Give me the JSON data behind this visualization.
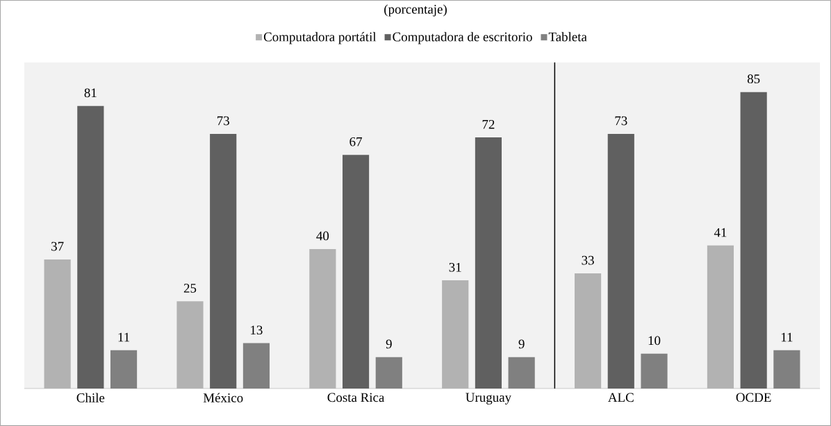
{
  "chart_data": {
    "type": "bar",
    "subtitle": "(porcentaje)",
    "categories": [
      "Chile",
      "México",
      "Costa Rica",
      "Uruguay",
      "ALC",
      "OCDE"
    ],
    "series": [
      {
        "name": "Computadora portátil",
        "color": "#b2b2b2",
        "values": [
          37,
          25,
          40,
          31,
          33,
          41
        ]
      },
      {
        "name": "Computadora de escritorio",
        "color": "#606060",
        "values": [
          81,
          73,
          67,
          72,
          73,
          85
        ]
      },
      {
        "name": "Tableta",
        "color": "#808080",
        "values": [
          11,
          13,
          9,
          9,
          10,
          11
        ]
      }
    ],
    "data_labels": true,
    "legend": "top",
    "grid": false
  }
}
